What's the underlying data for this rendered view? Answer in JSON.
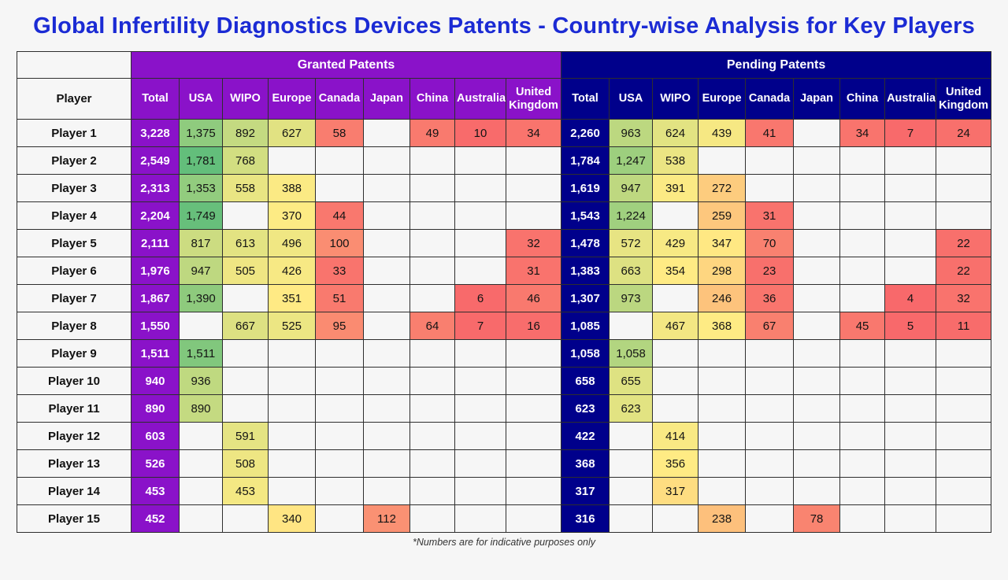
{
  "title": "Global Infertility Diagnostics Devices Patents - Country-wise Analysis for Key Players",
  "footnote": "*Numbers are for indicative purposes only",
  "colors": {
    "title": "#1b2bd4",
    "granted": "#8a12c9",
    "pending": "#00008b",
    "heat_min": "#f8696b",
    "heat_mid": "#ffeb84",
    "heat_max": "#63be7b",
    "empty_cell": "#f6f6f6",
    "border": "#2e2e2e"
  },
  "chart_data": {
    "type": "table",
    "title": "Global Infertility Diagnostics Devices Patents - Country-wise Analysis for Key Players",
    "player_header": "Player",
    "sections": [
      {
        "key": "granted",
        "label": "Granted Patents"
      },
      {
        "key": "pending",
        "label": "Pending Patents"
      }
    ],
    "columns": [
      "Total",
      "USA",
      "WIPO",
      "Europe",
      "Canada",
      "Japan",
      "China",
      "Australia",
      "United Kingdom"
    ],
    "rows": [
      {
        "player": "Player 1",
        "granted": [
          3228,
          1375,
          892,
          627,
          58,
          null,
          49,
          10,
          34
        ],
        "pending": [
          2260,
          963,
          624,
          439,
          41,
          null,
          34,
          7,
          24
        ]
      },
      {
        "player": "Player 2",
        "granted": [
          2549,
          1781,
          768,
          null,
          null,
          null,
          null,
          null,
          null
        ],
        "pending": [
          1784,
          1247,
          538,
          null,
          null,
          null,
          null,
          null,
          null
        ]
      },
      {
        "player": "Player 3",
        "granted": [
          2313,
          1353,
          558,
          388,
          null,
          null,
          null,
          null,
          null
        ],
        "pending": [
          1619,
          947,
          391,
          272,
          null,
          null,
          null,
          null,
          null
        ]
      },
      {
        "player": "Player 4",
        "granted": [
          2204,
          1749,
          null,
          370,
          44,
          null,
          null,
          null,
          null
        ],
        "pending": [
          1543,
          1224,
          null,
          259,
          31,
          null,
          null,
          null,
          null
        ]
      },
      {
        "player": "Player 5",
        "granted": [
          2111,
          817,
          613,
          496,
          100,
          null,
          null,
          null,
          32
        ],
        "pending": [
          1478,
          572,
          429,
          347,
          70,
          null,
          null,
          null,
          22
        ]
      },
      {
        "player": "Player 6",
        "granted": [
          1976,
          947,
          505,
          426,
          33,
          null,
          null,
          null,
          31
        ],
        "pending": [
          1383,
          663,
          354,
          298,
          23,
          null,
          null,
          null,
          22
        ]
      },
      {
        "player": "Player 7",
        "granted": [
          1867,
          1390,
          null,
          351,
          51,
          null,
          null,
          6,
          46
        ],
        "pending": [
          1307,
          973,
          null,
          246,
          36,
          null,
          null,
          4,
          32
        ]
      },
      {
        "player": "Player 8",
        "granted": [
          1550,
          null,
          667,
          525,
          95,
          null,
          64,
          7,
          16
        ],
        "pending": [
          1085,
          null,
          467,
          368,
          67,
          null,
          45,
          5,
          11
        ]
      },
      {
        "player": "Player 9",
        "granted": [
          1511,
          1511,
          null,
          null,
          null,
          null,
          null,
          null,
          null
        ],
        "pending": [
          1058,
          1058,
          null,
          null,
          null,
          null,
          null,
          null,
          null
        ]
      },
      {
        "player": "Player 10",
        "granted": [
          940,
          936,
          null,
          null,
          null,
          null,
          null,
          null,
          null
        ],
        "pending": [
          658,
          655,
          null,
          null,
          null,
          null,
          null,
          null,
          null
        ]
      },
      {
        "player": "Player 11",
        "granted": [
          890,
          890,
          null,
          null,
          null,
          null,
          null,
          null,
          null
        ],
        "pending": [
          623,
          623,
          null,
          null,
          null,
          null,
          null,
          null,
          null
        ]
      },
      {
        "player": "Player 12",
        "granted": [
          603,
          null,
          591,
          null,
          null,
          null,
          null,
          null,
          null
        ],
        "pending": [
          422,
          null,
          414,
          null,
          null,
          null,
          null,
          null,
          null
        ]
      },
      {
        "player": "Player 13",
        "granted": [
          526,
          null,
          508,
          null,
          null,
          null,
          null,
          null,
          null
        ],
        "pending": [
          368,
          null,
          356,
          null,
          null,
          null,
          null,
          null,
          null
        ]
      },
      {
        "player": "Player 14",
        "granted": [
          453,
          null,
          453,
          null,
          null,
          null,
          null,
          null,
          null
        ],
        "pending": [
          317,
          null,
          317,
          null,
          null,
          null,
          null,
          null,
          null
        ]
      },
      {
        "player": "Player 15",
        "granted": [
          452,
          null,
          null,
          340,
          null,
          112,
          null,
          null,
          null
        ],
        "pending": [
          316,
          null,
          null,
          238,
          null,
          78,
          null,
          null,
          null
        ]
      }
    ]
  }
}
